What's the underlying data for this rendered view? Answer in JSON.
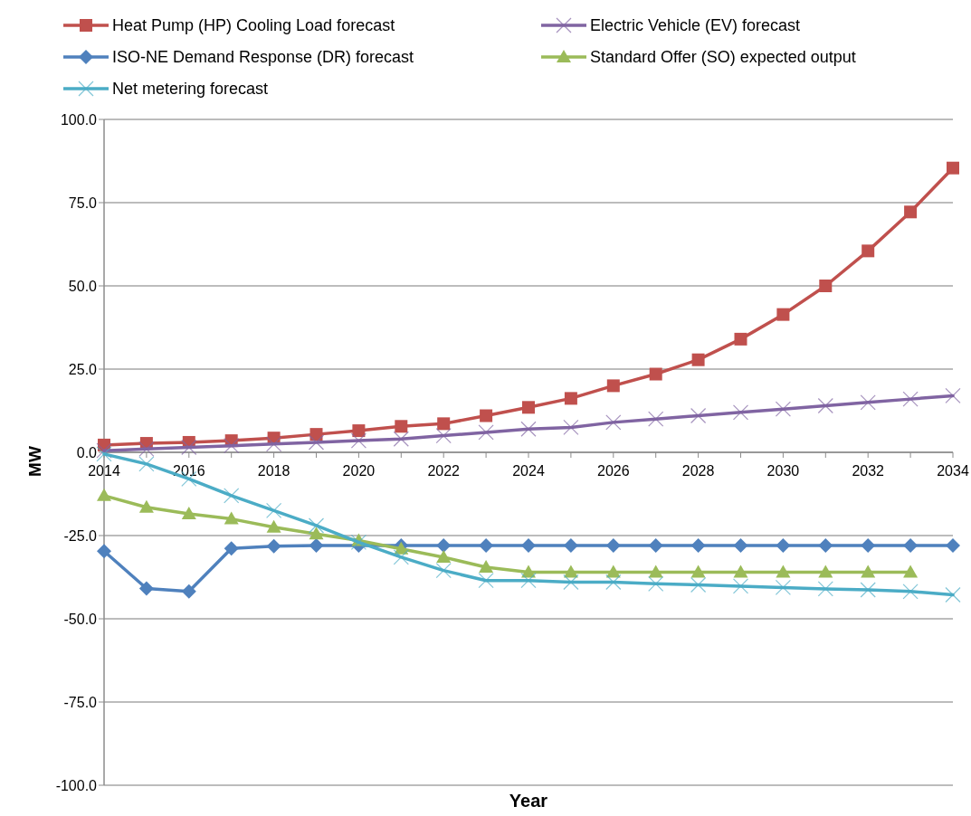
{
  "chart_data": {
    "type": "line",
    "xlabel": "Year",
    "ylabel": "MW",
    "x": [
      2014,
      2015,
      2016,
      2017,
      2018,
      2019,
      2020,
      2021,
      2022,
      2023,
      2024,
      2025,
      2026,
      2027,
      2028,
      2029,
      2030,
      2031,
      2032,
      2033,
      2034
    ],
    "xlim": [
      2014,
      2034
    ],
    "xticks": [
      2014,
      {
        "value": 2015,
        "label": null
      },
      2016,
      {
        "value": 2017,
        "label": null
      },
      2018,
      {
        "value": 2019,
        "label": null
      },
      2020,
      {
        "value": 2021,
        "label": null
      },
      2022,
      {
        "value": 2023,
        "label": null
      },
      2024,
      {
        "value": 2025,
        "label": null
      },
      2026,
      {
        "value": 2027,
        "label": null
      },
      2028,
      {
        "value": 2029,
        "label": null
      },
      2030,
      {
        "value": 2031,
        "label": null
      },
      2032,
      {
        "value": 2033,
        "label": null
      },
      2034
    ],
    "ylim": [
      -100,
      100
    ],
    "yticks": [
      {
        "value": -100,
        "label": "-100.0"
      },
      {
        "value": -75,
        "label": "-75.0"
      },
      {
        "value": -50,
        "label": "-50.0"
      },
      {
        "value": -25,
        "label": "-25.0"
      },
      {
        "value": 0,
        "label": "0.0"
      },
      {
        "value": 25,
        "label": "25.0"
      },
      {
        "value": 50,
        "label": "50.0"
      },
      {
        "value": 75,
        "label": "75.0"
      },
      {
        "value": 100,
        "label": "100.0"
      }
    ],
    "grid": "y",
    "legend": "top",
    "line_style": "solid",
    "series": [
      {
        "name": "Heat Pump (HP) Cooling Load forecast",
        "color": "#c0504d",
        "marker": "square",
        "values": [
          2.2,
          2.7,
          3.0,
          3.5,
          4.3,
          5.4,
          6.5,
          7.8,
          8.6,
          11,
          13.5,
          16.2,
          20,
          23.5,
          27.8,
          34,
          41.4,
          50,
          60.5,
          72.2,
          85.4
        ]
      },
      {
        "name": "Electric Vehicle (EV) forecast",
        "color": "#8064a2",
        "marker": "cross",
        "values": [
          0.5,
          1,
          1.5,
          2,
          2.5,
          3,
          3.5,
          4,
          5,
          6,
          7,
          7.5,
          9,
          10,
          11,
          12,
          13,
          14,
          15,
          16,
          17
        ]
      },
      {
        "name": "ISO-NE Demand Response (DR) forecast",
        "color": "#4f81bd",
        "marker": "diamond",
        "values": [
          -29.7,
          -40.9,
          -41.8,
          -28.9,
          -28.2,
          -28,
          -28,
          -28,
          -28,
          -28,
          -28,
          -28,
          -28,
          -28,
          -28,
          -28,
          -28,
          -28,
          -28,
          -28,
          -28
        ]
      },
      {
        "name": "Standard Offer (SO) expected output",
        "color": "#9bbb59",
        "marker": "triangle",
        "values": [
          -13,
          -16.5,
          -18.5,
          -20,
          -22.5,
          -24.5,
          -26.5,
          -29,
          -31.5,
          -34.5,
          -36,
          -36,
          -36,
          -36,
          -36,
          -36,
          -36,
          -36,
          -36,
          -36,
          null
        ]
      },
      {
        "name": "Net metering forecast",
        "color": "#4bacc6",
        "marker": "cross",
        "values": [
          -0.5,
          -3.5,
          -8,
          -13,
          -17.5,
          -22,
          -27,
          -31.5,
          -35.5,
          -38.5,
          -38.5,
          -39,
          -39,
          -39.5,
          -39.8,
          -40.2,
          -40.6,
          -41,
          -41.3,
          -41.8,
          -42.8
        ]
      }
    ]
  }
}
